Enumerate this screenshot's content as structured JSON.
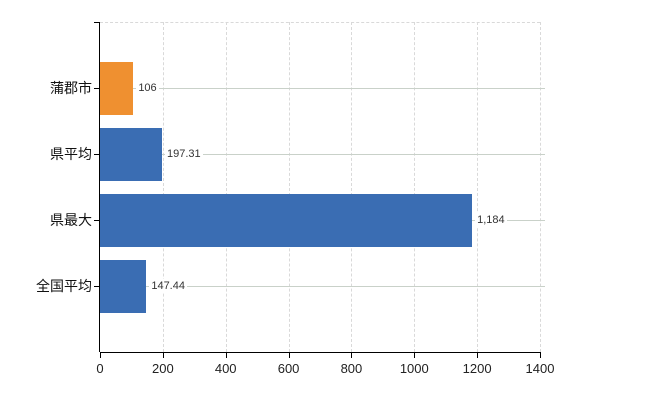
{
  "chart": {
    "background": "#ffffff",
    "axis_color": "#000000",
    "h_gridline_color": "#c9d1c9",
    "v_gridline_color": "#d9d9d9",
    "category_label_color": "#111111",
    "value_label_color": "#333333",
    "tick_label_color": "#222222"
  },
  "chart_data": {
    "type": "bar",
    "orientation": "horizontal",
    "title": "",
    "xlabel": "",
    "ylabel": "",
    "categories": [
      "蒲郡市",
      "県平均",
      "県最大",
      "全国平均"
    ],
    "values": [
      106,
      197.31,
      1184,
      147.44
    ],
    "value_labels": [
      "106",
      "197.31",
      "1,184",
      "147.44"
    ],
    "bar_colors": [
      "#ef9030",
      "#3a6db3",
      "#3a6db3",
      "#3a6db3"
    ],
    "x_ticks": [
      0,
      200,
      400,
      600,
      800,
      1000,
      1200,
      1400
    ],
    "x_tick_labels": [
      "0",
      "200",
      "400",
      "600",
      "800",
      "1000",
      "1200",
      "1400"
    ],
    "xlim": [
      0,
      1400
    ],
    "grid": {
      "vertical": "dashed",
      "horizontal": "solid row lines"
    },
    "legend": "none"
  }
}
